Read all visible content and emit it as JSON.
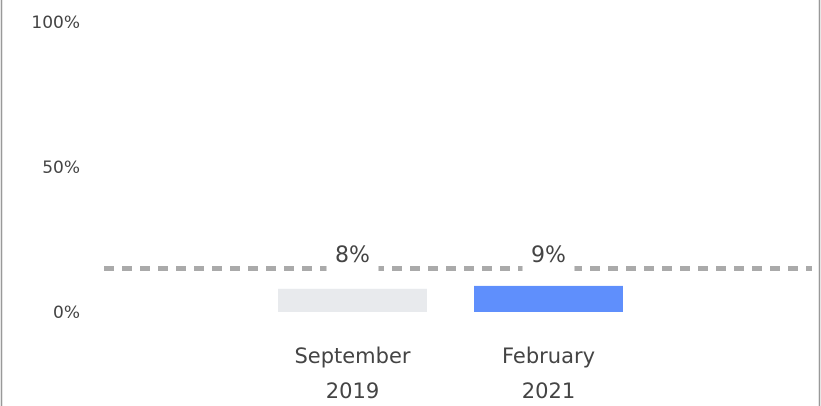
{
  "chart_data": {
    "type": "bar",
    "categories": [
      "September 2019",
      "February 2021"
    ],
    "values": [
      8,
      9
    ],
    "value_labels": [
      "8%",
      "9%"
    ],
    "colors": [
      "#e8eaed",
      "#5f8ffc"
    ],
    "reference_line": 15,
    "ylim": [
      0,
      100
    ],
    "yticks": [
      {
        "value": 0,
        "label": "0%"
      },
      {
        "value": 50,
        "label": "50%"
      },
      {
        "value": 100,
        "label": "100%"
      }
    ]
  }
}
